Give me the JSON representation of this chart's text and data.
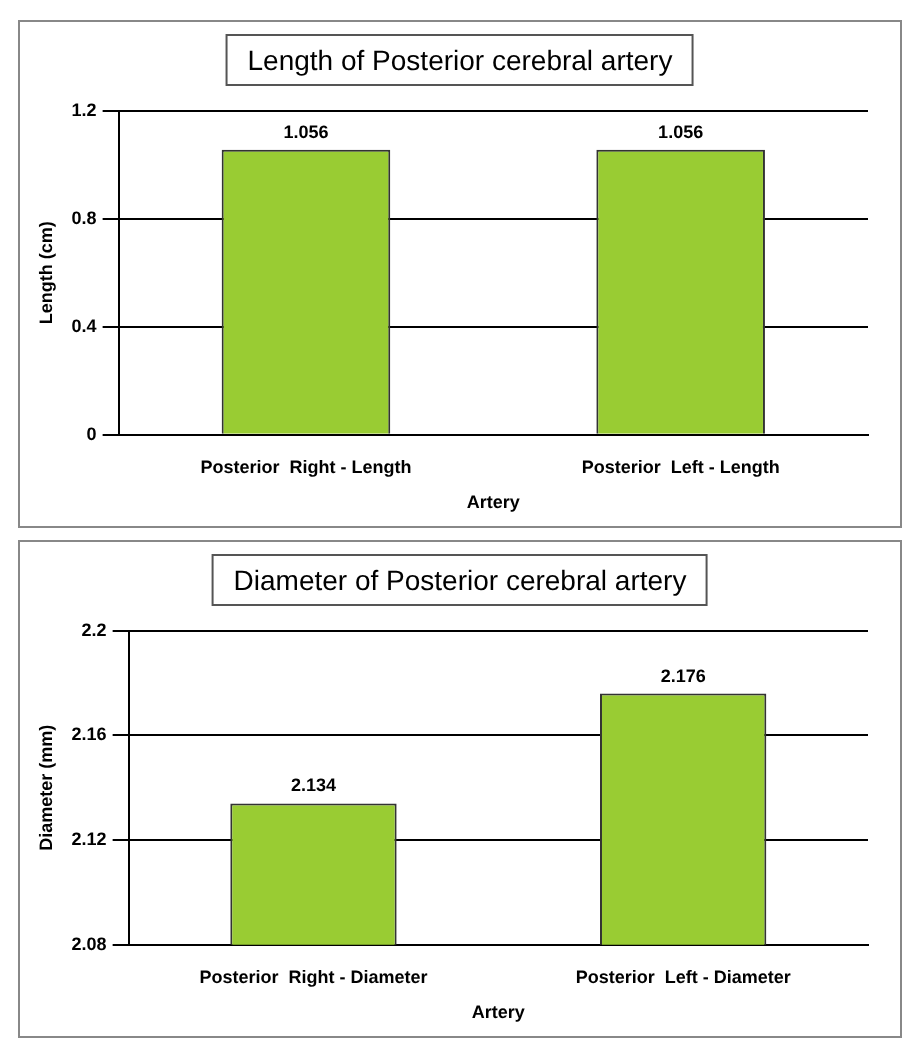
{
  "chart_data": [
    {
      "type": "bar",
      "title": "Length of Posterior cerebral artery",
      "xlabel": "Artery",
      "ylabel": "Length (cm)",
      "categories": [
        "Posterior  Right - Length",
        "Posterior  Left - Length"
      ],
      "values": [
        1.056,
        1.056
      ],
      "color": "#99cc33",
      "ylim": [
        0,
        1.2
      ],
      "yticks": [
        0,
        0.4,
        0.8,
        1.2
      ],
      "grid": "y",
      "data_labels": true
    },
    {
      "type": "bar",
      "title": "Diameter of Posterior cerebral artery",
      "xlabel": "Artery",
      "ylabel": "Diameter (mm)",
      "categories": [
        "Posterior  Right - Diameter",
        "Posterior  Left - Diameter"
      ],
      "values": [
        2.134,
        2.176
      ],
      "color": "#99cc33",
      "ylim": [
        2.08,
        2.2
      ],
      "yticks": [
        2.08,
        2.12,
        2.16,
        2.2
      ],
      "grid": "y",
      "data_labels": true
    }
  ]
}
